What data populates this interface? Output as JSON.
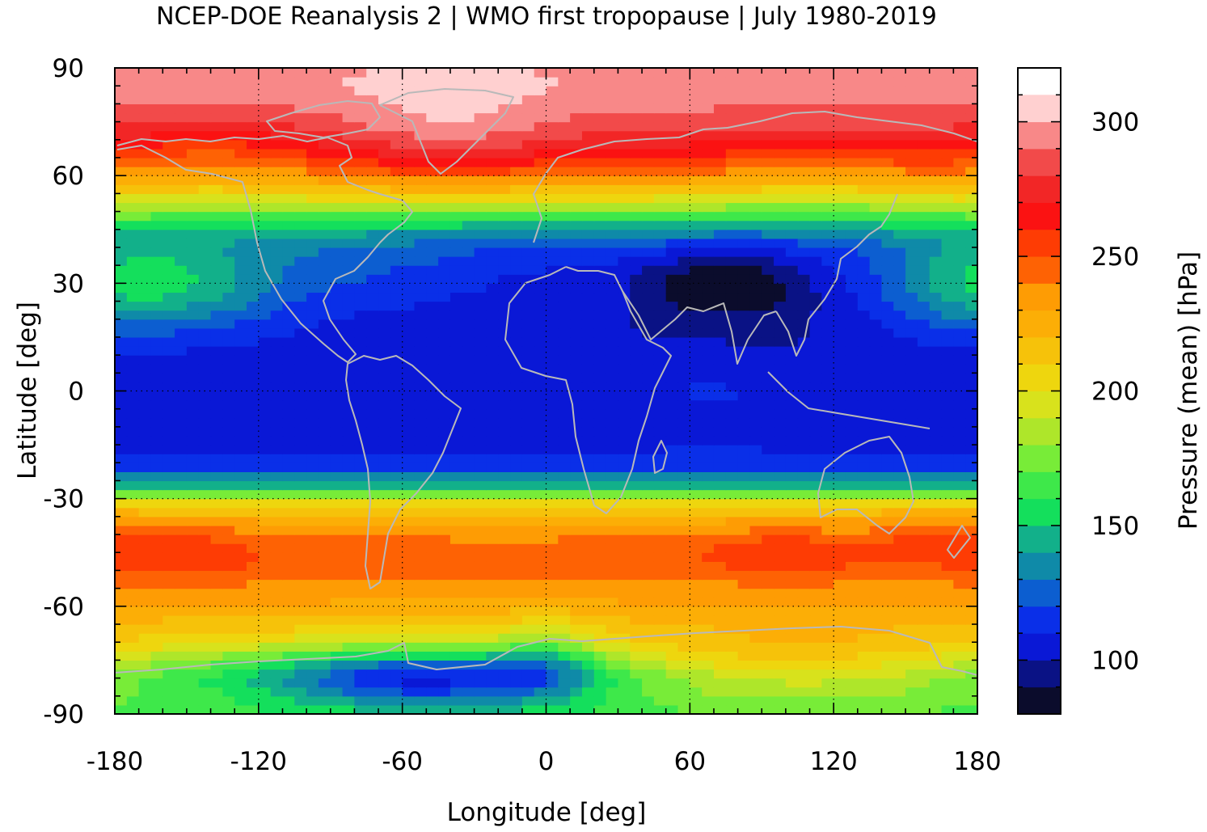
{
  "chart_data": {
    "type": "heatmap",
    "title": "NCEP-DOE Reanalysis 2 | WMO first tropopause | July 1980-2019",
    "xlabel": "Longitude [deg]",
    "ylabel": "Latitude [deg]",
    "colorbar_label": "Pressure (mean) [hPa]",
    "xlim": [
      -180,
      180
    ],
    "ylim": [
      -90,
      90
    ],
    "x_ticks": [
      -180,
      -120,
      -60,
      0,
      60,
      120,
      180
    ],
    "y_ticks": [
      -90,
      -60,
      -30,
      0,
      30,
      60,
      90
    ],
    "x_tick_labels": [
      "-180",
      "-120",
      "-60",
      "0",
      "60",
      "120",
      "180"
    ],
    "y_tick_labels": [
      "-90",
      "-60",
      "-30",
      "0",
      "30",
      "60",
      "90"
    ],
    "grid": true,
    "colorbar": {
      "range": [
        80,
        320
      ],
      "step": 10,
      "ticks": [
        100,
        150,
        200,
        250,
        300
      ],
      "tick_labels": [
        "100",
        "150",
        "200",
        "250",
        "300"
      ],
      "colors": [
        "#0b0c2c",
        "#0a1285",
        "#0a18d6",
        "#0a2fe8",
        "#0c5ed0",
        "#0f8aa8",
        "#12b08a",
        "#14df5c",
        "#3ee84a",
        "#78ec38",
        "#aee62a",
        "#d8e21c",
        "#eed60e",
        "#f6c20a",
        "#fcae06",
        "#fe9c04",
        "#fe6204",
        "#fe3c04",
        "#fb1212",
        "#f22626",
        "#f24a4a",
        "#f88888",
        "#ffd0d0"
      ]
    },
    "field": {
      "lat_nodes": [
        -90,
        -85,
        -80,
        -75,
        -70,
        -65,
        -60,
        -55,
        -50,
        -45,
        -40,
        -35,
        -31,
        -27,
        -22,
        -15,
        -5,
        5,
        15,
        25,
        33,
        40,
        45,
        50,
        55,
        60,
        65,
        70,
        75,
        80,
        85,
        90
      ],
      "zonal_mean_hPa": [
        165,
        165,
        160,
        175,
        200,
        215,
        228,
        236,
        243,
        246,
        238,
        225,
        200,
        155,
        118,
        108,
        104,
        104,
        106,
        108,
        110,
        120,
        140,
        175,
        210,
        240,
        260,
        275,
        285,
        292,
        298,
        298
      ],
      "anomalies": [
        {
          "lon": -50,
          "lat": -80,
          "lon_width": 45,
          "lat_width": 6,
          "delta_hPa": -55
        },
        {
          "lon": 0,
          "lat": -74,
          "lon_width": 15,
          "lat_width": 8,
          "delta_hPa": -25
        },
        {
          "lon": 105,
          "lat": -77,
          "lon_width": 60,
          "lat_width": 7,
          "delta_hPa": 35
        },
        {
          "lon": 75,
          "lat": 30,
          "lon_width": 22,
          "lat_width": 6,
          "delta_hPa": -22
        },
        {
          "lon": 75,
          "lat": 22,
          "lon_width": 40,
          "lat_width": 14,
          "delta_hPa": -10
        },
        {
          "lon": -150,
          "lat": 30,
          "lon_width": 30,
          "lat_width": 9,
          "delta_hPa": 35
        },
        {
          "lon": 170,
          "lat": 30,
          "lon_width": 25,
          "lat_width": 9,
          "delta_hPa": 25
        },
        {
          "lon": -80,
          "lat": 35,
          "lon_width": 30,
          "lat_width": 7,
          "delta_hPa": 10
        },
        {
          "lon": 70,
          "lat": 2,
          "lon_width": 20,
          "lat_width": 8,
          "delta_hPa": 10
        },
        {
          "lon": 100,
          "lat": -45,
          "lon_width": 25,
          "lat_width": 5,
          "delta_hPa": 14
        },
        {
          "lon": -155,
          "lat": -45,
          "lon_width": 25,
          "lat_width": 6,
          "delta_hPa": 14
        },
        {
          "lon": 160,
          "lat": -40,
          "lon_width": 15,
          "lat_width": 5,
          "delta_hPa": 12
        },
        {
          "lon": -40,
          "lat": 73,
          "lon_width": 30,
          "lat_width": 10,
          "delta_hPa": 15
        },
        {
          "lon": -140,
          "lat": 65,
          "lon_width": 30,
          "lat_width": 8,
          "delta_hPa": -15
        },
        {
          "lon": 110,
          "lat": 60,
          "lon_width": 30,
          "lat_width": 8,
          "delta_hPa": -10
        }
      ]
    },
    "overlay": "coastlines (grey)"
  }
}
